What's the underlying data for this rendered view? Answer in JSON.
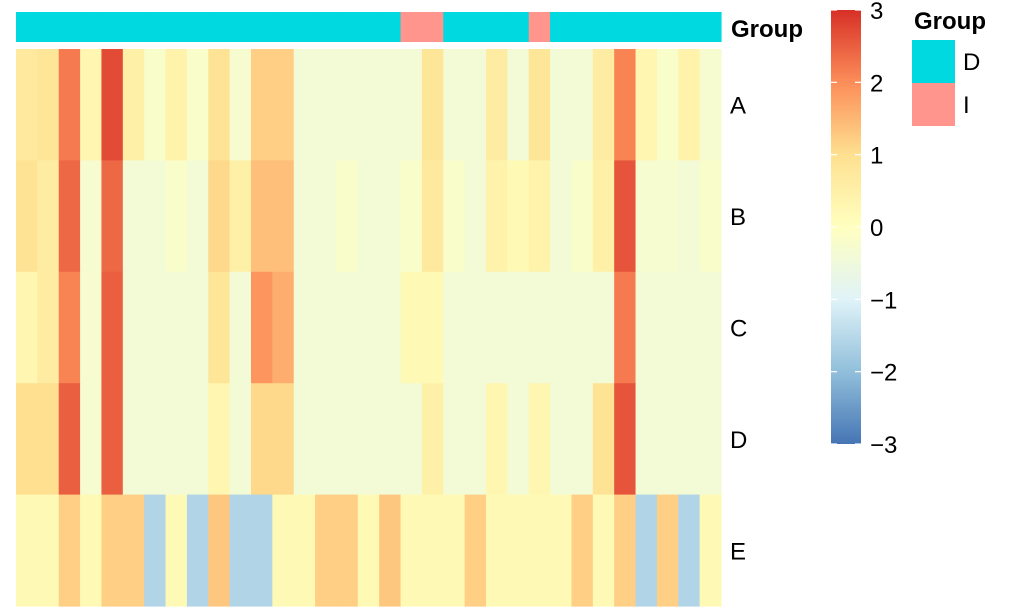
{
  "chart_data": {
    "type": "heatmap",
    "rows": [
      "A",
      "B",
      "C",
      "D",
      "E"
    ],
    "n_columns": 33,
    "annotation": {
      "title": "Group",
      "groups": [
        "D",
        "D",
        "D",
        "D",
        "D",
        "D",
        "D",
        "D",
        "D",
        "D",
        "D",
        "D",
        "D",
        "D",
        "D",
        "D",
        "D",
        "D",
        "I",
        "I",
        "D",
        "D",
        "D",
        "D",
        "I",
        "D",
        "D",
        "D",
        "D",
        "D",
        "D",
        "D",
        "D"
      ]
    },
    "values": [
      [
        0.7,
        0.8,
        2.2,
        0.3,
        2.7,
        0.5,
        -0.2,
        0.4,
        -0.2,
        0.9,
        -0.3,
        1.2,
        1.2,
        -0.4,
        -0.4,
        -0.4,
        -0.4,
        -0.4,
        -0.4,
        0.8,
        -0.4,
        -0.4,
        0.6,
        -0.4,
        0.8,
        -0.4,
        -0.4,
        0.6,
        2.1,
        0.3,
        -0.2,
        0.4,
        -0.3
      ],
      [
        0.9,
        0.6,
        2.4,
        -0.3,
        2.4,
        -0.4,
        -0.4,
        -0.2,
        -0.4,
        1.1,
        0.5,
        1.4,
        1.4,
        -0.4,
        -0.4,
        -0.2,
        -0.4,
        -0.4,
        -0.2,
        0.7,
        -0.2,
        -0.4,
        0.4,
        0.2,
        0.4,
        -0.4,
        -0.2,
        0.5,
        2.6,
        -0.3,
        -0.3,
        -0.4,
        -0.2
      ],
      [
        0.3,
        0.6,
        2.1,
        -0.3,
        2.5,
        -0.4,
        -0.4,
        -0.4,
        -0.4,
        0.8,
        -0.4,
        1.9,
        1.6,
        -0.4,
        -0.4,
        -0.4,
        -0.4,
        -0.4,
        0.2,
        0.2,
        -0.4,
        -0.4,
        -0.4,
        -0.4,
        -0.4,
        -0.4,
        -0.4,
        -0.4,
        2.2,
        -0.4,
        -0.4,
        -0.4,
        -0.4
      ],
      [
        1.0,
        1.0,
        2.5,
        -0.3,
        2.5,
        -0.4,
        -0.4,
        -0.4,
        -0.4,
        0.3,
        -0.4,
        1.1,
        1.1,
        -0.4,
        -0.4,
        -0.4,
        -0.4,
        -0.4,
        -0.4,
        0.5,
        -0.4,
        -0.4,
        0.3,
        -0.4,
        0.3,
        -0.4,
        -0.4,
        0.9,
        2.6,
        -0.4,
        -0.4,
        -0.4,
        -0.4
      ],
      [
        0.2,
        0.2,
        1.2,
        0.2,
        1.2,
        1.2,
        -1.6,
        0.2,
        -1.6,
        1.3,
        -1.6,
        -1.6,
        0.2,
        0.2,
        1.2,
        1.2,
        0.2,
        1.3,
        0.2,
        0.2,
        0.2,
        1.2,
        0.2,
        0.2,
        0.2,
        0.2,
        1.2,
        0.2,
        1.2,
        -1.6,
        1.2,
        -1.6,
        0.2
      ]
    ],
    "colorbar": {
      "min": -3,
      "max": 3,
      "ticks": [
        "3",
        "2",
        "1",
        "0",
        "−1",
        "−2",
        "−3"
      ]
    },
    "legend": {
      "title": "Group",
      "entries": [
        {
          "label": "D",
          "color": "#00D9E0"
        },
        {
          "label": "I",
          "color": "#FF958C"
        }
      ]
    },
    "colors": {
      "scale": [
        "#4575B4",
        "#91BFDB",
        "#E0F3F8",
        "#FFFFBF",
        "#FEE090",
        "#FC8D59",
        "#D73027"
      ],
      "group_D": "#00D9E0",
      "group_I": "#FF958C"
    }
  }
}
